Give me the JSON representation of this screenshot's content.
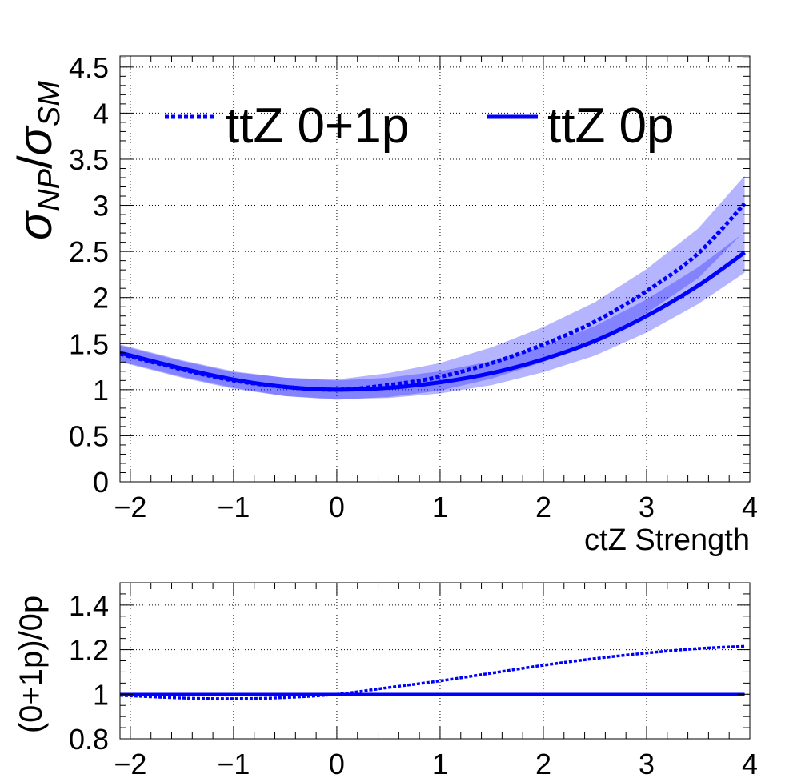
{
  "chart_data": [
    {
      "type": "line",
      "xlabel": "ctZ Strength",
      "ylabel": {
        "main": "σ",
        "main_sub": "NP",
        "slash": "/",
        "den": "σ",
        "den_sub": "SM"
      },
      "xlim": [
        -2.1,
        4.0
      ],
      "ylim": [
        0,
        4.62
      ],
      "xticks": [
        -2,
        -1,
        0,
        1,
        2,
        3,
        4
      ],
      "xtick_labels": [
        "−2",
        "−1",
        "0",
        "1",
        "2",
        "3",
        "4"
      ],
      "yticks": [
        0,
        0.5,
        1,
        1.5,
        2,
        2.5,
        3,
        3.5,
        4,
        4.5
      ],
      "ytick_labels": [
        "0",
        "0.5",
        "1",
        "1.5",
        "2",
        "2.5",
        "3",
        "3.5",
        "4",
        "4.5"
      ],
      "grid": true,
      "legend_position": "top",
      "series": [
        {
          "name": "ttZ 0+1p",
          "style": "dashed",
          "color": "#0000ff",
          "x": [
            -2.1,
            -1.5,
            -1.0,
            -0.5,
            0.0,
            0.5,
            1.0,
            1.5,
            2.0,
            2.5,
            3.0,
            3.5,
            3.95
          ],
          "y": [
            1.39,
            1.22,
            1.1,
            1.03,
            1.0,
            1.05,
            1.14,
            1.29,
            1.49,
            1.74,
            2.07,
            2.48,
            3.02
          ],
          "band_halfwidth": [
            0.09,
            0.09,
            0.09,
            0.1,
            0.11,
            0.13,
            0.15,
            0.17,
            0.19,
            0.21,
            0.24,
            0.27,
            0.3
          ]
        },
        {
          "name": "ttZ 0p",
          "style": "solid",
          "color": "#0000ff",
          "x": [
            -2.1,
            -1.5,
            -1.0,
            -0.5,
            0.0,
            0.5,
            1.0,
            1.5,
            2.0,
            2.5,
            3.0,
            3.5,
            3.95
          ],
          "y": [
            1.4,
            1.23,
            1.11,
            1.03,
            1.0,
            1.02,
            1.08,
            1.18,
            1.33,
            1.53,
            1.8,
            2.13,
            2.49
          ],
          "band_halfwidth": [
            0.09,
            0.09,
            0.09,
            0.1,
            0.1,
            0.11,
            0.12,
            0.13,
            0.14,
            0.16,
            0.18,
            0.2,
            0.22
          ]
        }
      ]
    },
    {
      "type": "line",
      "xlabel": "",
      "ylabel": "(0+1p)/0p",
      "xlim": [
        -2.1,
        4.0
      ],
      "ylim": [
        0.8,
        1.5
      ],
      "xticks": [
        -2,
        -1,
        0,
        1,
        2,
        3,
        4
      ],
      "xtick_labels": [
        "−2",
        "−1",
        "0",
        "1",
        "2",
        "3",
        "4"
      ],
      "yticks": [
        0.8,
        1.0,
        1.2,
        1.4
      ],
      "ytick_labels": [
        "0.8",
        "1",
        "1.2",
        "1.4"
      ],
      "grid": true,
      "series": [
        {
          "style": "dashed",
          "color": "#0000ff",
          "x": [
            -2.1,
            -1.5,
            -1.0,
            -0.5,
            0.0,
            0.5,
            1.0,
            1.5,
            2.0,
            2.5,
            3.0,
            3.5,
            3.95
          ],
          "y": [
            0.995,
            0.983,
            0.98,
            0.985,
            1.0,
            1.03,
            1.06,
            1.095,
            1.13,
            1.16,
            1.185,
            1.205,
            1.215
          ]
        },
        {
          "style": "solid",
          "color": "#0000ff",
          "x": [
            -2.1,
            3.95
          ],
          "y": [
            1.0,
            1.0
          ]
        }
      ]
    }
  ]
}
